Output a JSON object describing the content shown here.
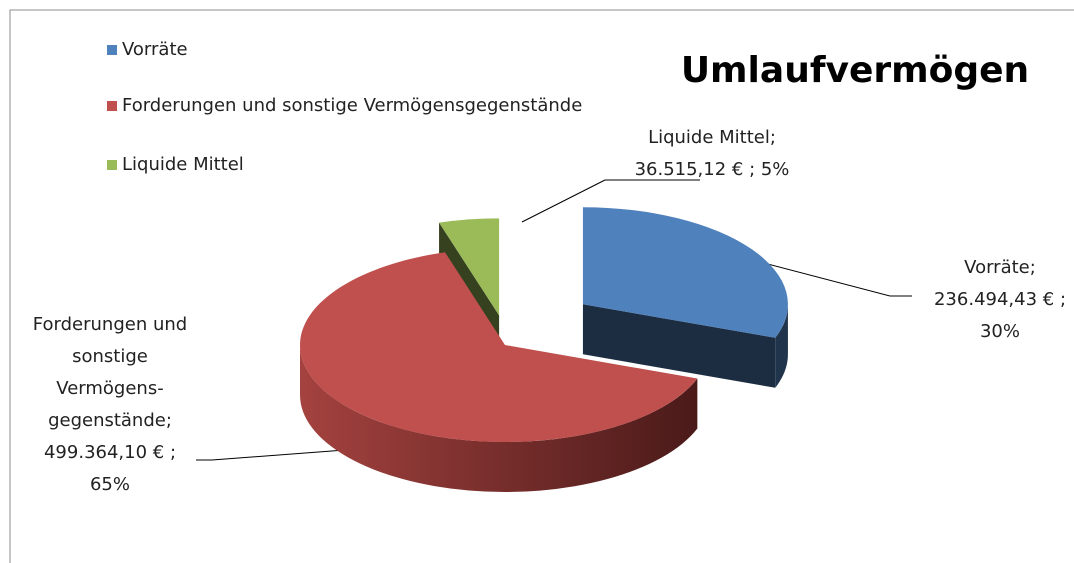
{
  "chart_data": {
    "type": "pie3d",
    "title": "Umlaufvermögen",
    "categories": [
      "Vorräte",
      "Forderungen und sonstige Vermögensgegenstände",
      "Liquide Mittel"
    ],
    "values": [
      236494.43,
      499364.1,
      36515.12
    ],
    "value_labels": [
      [
        "Vorräte;",
        "236.494,43 € ;",
        "30%"
      ],
      [
        "Forderungen und",
        "sonstige",
        "Vermögens-",
        "gegenstände;",
        "499.364,10 € ;",
        "65%"
      ],
      [
        "Liquide Mittel;",
        "36.515,12 € ; 5%"
      ]
    ],
    "colors": [
      "#4f81bd",
      "#c0504d",
      "#9bbb59"
    ],
    "exploded": [
      true,
      false,
      true
    ],
    "legend": "top-left"
  }
}
